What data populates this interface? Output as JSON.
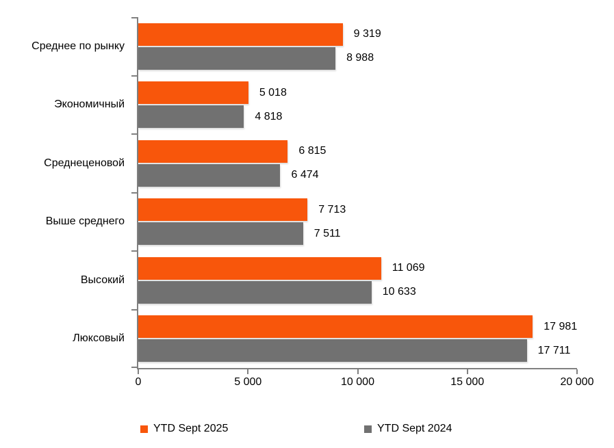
{
  "chart_data": {
    "type": "bar",
    "orientation": "horizontal",
    "title": "",
    "xlabel": "",
    "ylabel": "",
    "categories": [
      "Среднее по рынку",
      "Экономичный",
      "Среднеценовой",
      "Выше среднего",
      "Высокий",
      "Люксовый"
    ],
    "series": [
      {
        "name": "YTD Sept 2025",
        "color": "#F8560B",
        "values": [
          9319,
          5018,
          6815,
          7713,
          11069,
          17981
        ],
        "labels": [
          "9 319",
          "5 018",
          "6 815",
          "7 713",
          "11 069",
          "17 981"
        ]
      },
      {
        "name": "YTD Sept 2024",
        "color": "#717171",
        "values": [
          8988,
          4818,
          6474,
          7511,
          10633,
          17711
        ],
        "labels": [
          "8 988",
          "4 818",
          "6 474",
          "7 511",
          "10 633",
          "17 711"
        ]
      }
    ],
    "xlim": [
      0,
      20000
    ],
    "x_ticks": [
      "0",
      "5 000",
      "10 000",
      "15 000",
      "20 000"
    ],
    "grid": false,
    "legend_position": "bottom"
  },
  "legend": {
    "items": [
      {
        "label": "YTD Sept 2025",
        "color": "#F8560B"
      },
      {
        "label": "YTD Sept 2024",
        "color": "#717171"
      }
    ]
  },
  "colors": {
    "axis": "#808080",
    "text": "#000000",
    "background": "#FFFFFF"
  }
}
